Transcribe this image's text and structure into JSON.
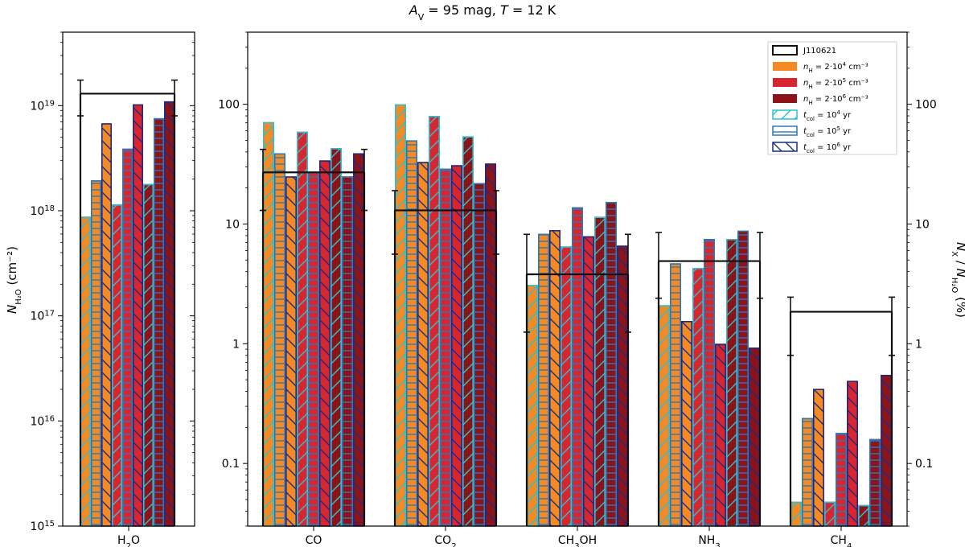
{
  "chart_data": {
    "type": "bar",
    "title": {
      "a": "A",
      "a_sub": "V",
      "mid": " = 95 mag,  ",
      "t": "T",
      "rest": " = 12 K"
    },
    "log_scale": true,
    "left_panel": {
      "category": {
        "main": "H",
        "sub": "2",
        "rest": "O"
      },
      "ylim": [
        1000000000000000.0,
        5e+19
      ],
      "ylabel": {
        "n": "N",
        "sub": "H₂O",
        "units": "  (cm⁻²)"
      },
      "ytick_labels": [
        {
          "value": 1000000000000000.0,
          "base": "10",
          "exp": "15"
        },
        {
          "value": 1e+16,
          "base": "10",
          "exp": "16"
        },
        {
          "value": 1e+17,
          "base": "10",
          "exp": "17"
        },
        {
          "value": 1e+18,
          "base": "10",
          "exp": "18"
        },
        {
          "value": 1e+19,
          "base": "10",
          "exp": "19"
        }
      ],
      "observed": {
        "value": 1.3e+19,
        "err_low": 8e+18,
        "err_high": 1.75e+19
      },
      "bars": [
        8.8e+17,
        1.95e+18,
        6.8e+18,
        1.15e+18,
        3.9e+18,
        1.03e+19,
        1.8e+18,
        7.6e+18,
        1.1e+19
      ]
    },
    "right_panel": {
      "ylim": [
        0.03,
        400
      ],
      "ylabel": {
        "n": "N",
        "sub1": "X",
        "mid": " / ",
        "n2": "N",
        "sub2": "H₂O",
        "units": "  (%)"
      },
      "ytick_labels": [
        {
          "value": 0.1,
          "label": "0.1"
        },
        {
          "value": 1,
          "label": "1"
        },
        {
          "value": 10,
          "label": "10"
        },
        {
          "value": 100,
          "label": "100"
        }
      ],
      "categories": [
        {
          "main": "CO",
          "sub": "",
          "rest": ""
        },
        {
          "main": "CO",
          "sub": "2",
          "rest": ""
        },
        {
          "main": "CH",
          "sub": "3",
          "rest": "OH"
        },
        {
          "main": "NH",
          "sub": "3",
          "rest": ""
        },
        {
          "main": "CH",
          "sub": "4",
          "rest": ""
        }
      ],
      "observed": [
        {
          "value": 27,
          "err_low": 13,
          "err_high": 42
        },
        {
          "value": 13,
          "err_low": 5.6,
          "err_high": 19
        },
        {
          "value": 3.8,
          "err_low": 1.25,
          "err_high": 8.2
        },
        {
          "value": 4.9,
          "err_low": 2.4,
          "err_high": 8.5
        },
        {
          "value": 1.85,
          "err_low": 0.8,
          "err_high": 2.45
        }
      ],
      "bars": [
        [
          71,
          39,
          25,
          59,
          27,
          34,
          43,
          25,
          39
        ],
        [
          100,
          50,
          33,
          80,
          29,
          31,
          54,
          22,
          32
        ],
        [
          3.1,
          8.3,
          8.9,
          6.5,
          13.8,
          7.9,
          11.5,
          15.3,
          6.6
        ],
        [
          2.1,
          4.7,
          1.55,
          4.3,
          7.5,
          1.0,
          7.5,
          8.8,
          0.93
        ],
        [
          0.048,
          0.24,
          0.42,
          0.048,
          0.18,
          0.49,
          0.045,
          0.16,
          0.55
        ]
      ]
    },
    "bar_order": [
      {
        "density": 0,
        "time": 0
      },
      {
        "density": 0,
        "time": 1
      },
      {
        "density": 0,
        "time": 2
      },
      {
        "density": 1,
        "time": 0
      },
      {
        "density": 1,
        "time": 1
      },
      {
        "density": 1,
        "time": 2
      },
      {
        "density": 2,
        "time": 0
      },
      {
        "density": 2,
        "time": 1
      },
      {
        "density": 2,
        "time": 2
      }
    ],
    "density_colors": [
      "#f58a22",
      "#d9262e",
      "#8c1418"
    ],
    "time_edge_colors": [
      "#2ebfd0",
      "#2d78b8",
      "#1f2a80"
    ],
    "observed_color": "#111111",
    "legend": {
      "placement": "top-right",
      "observed_label": "J110621",
      "density_entries": [
        {
          "pre": "n",
          "sub": "H",
          "mid": " = 2·10",
          "exp": "4",
          "post": " cm⁻³"
        },
        {
          "pre": "n",
          "sub": "H",
          "mid": " = 2·10",
          "exp": "5",
          "post": " cm⁻³"
        },
        {
          "pre": "n",
          "sub": "H",
          "mid": " = 2·10",
          "exp": "6",
          "post": " cm⁻³"
        }
      ],
      "time_entries": [
        {
          "pre": "t",
          "sub": "col",
          "mid": " = 10",
          "exp": "4",
          "post": " yr"
        },
        {
          "pre": "t",
          "sub": "col",
          "mid": " = 10",
          "exp": "5",
          "post": " yr"
        },
        {
          "pre": "t",
          "sub": "col",
          "mid": " = 10",
          "exp": "6",
          "post": " yr"
        }
      ]
    }
  }
}
